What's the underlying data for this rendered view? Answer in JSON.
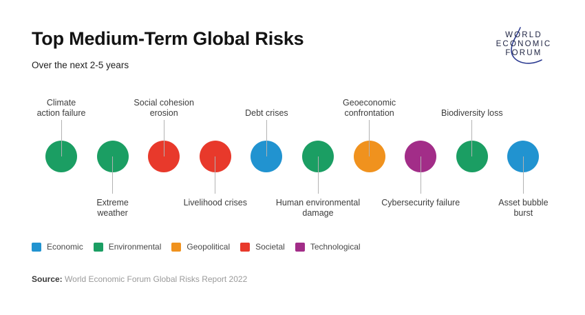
{
  "header": {
    "title": "Top Medium-Term Global Risks",
    "subtitle": "Over the next 2-5 years"
  },
  "logo": {
    "lines": [
      "WORLD",
      "ECONOMIC",
      "FORUM"
    ],
    "text_color": "#1e2342",
    "arc_color": "#2d3c92"
  },
  "chart_data": {
    "type": "ranked-dot-plot",
    "title": "Top Medium-Term Global Risks",
    "subtitle": "Over the next 2-5 years",
    "risks": [
      {
        "rank": 1,
        "name": "Climate action failure",
        "label": "Climate\naction failure",
        "category": "Environmental",
        "label_position": "above"
      },
      {
        "rank": 2,
        "name": "Extreme weather",
        "label": "Extreme\nweather",
        "category": "Environmental",
        "label_position": "below"
      },
      {
        "rank": 3,
        "name": "Social cohesion erosion",
        "label": "Social cohesion\nerosion",
        "category": "Societal",
        "label_position": "above"
      },
      {
        "rank": 4,
        "name": "Livelihood crises",
        "label": "Livelihood crises",
        "category": "Societal",
        "label_position": "below"
      },
      {
        "rank": 5,
        "name": "Debt crises",
        "label": "Debt crises",
        "category": "Economic",
        "label_position": "above"
      },
      {
        "rank": 6,
        "name": "Human environmental damage",
        "label": "Human environmental\ndamage",
        "category": "Environmental",
        "label_position": "below"
      },
      {
        "rank": 7,
        "name": "Geoeconomic confrontation",
        "label": "Geoeconomic\nconfrontation",
        "category": "Geopolitical",
        "label_position": "above"
      },
      {
        "rank": 8,
        "name": "Cybersecurity failure",
        "label": "Cybersecurity failure",
        "category": "Technological",
        "label_position": "below"
      },
      {
        "rank": 9,
        "name": "Biodiversity loss",
        "label": "Biodiversity loss",
        "category": "Environmental",
        "label_position": "above"
      },
      {
        "rank": 10,
        "name": "Asset bubble burst",
        "label": "Asset bubble\nburst",
        "category": "Economic",
        "label_position": "below"
      }
    ],
    "legend": [
      {
        "name": "Economic",
        "color": "#2193d0"
      },
      {
        "name": "Environmental",
        "color": "#1b9e63"
      },
      {
        "name": "Geopolitical",
        "color": "#f0921e"
      },
      {
        "name": "Societal",
        "color": "#e8392b"
      },
      {
        "name": "Technological",
        "color": "#a22d88"
      }
    ],
    "legend_position": "bottom-left"
  },
  "source": {
    "label": "Source:",
    "text": "World Economic Forum Global Risks Report 2022"
  }
}
